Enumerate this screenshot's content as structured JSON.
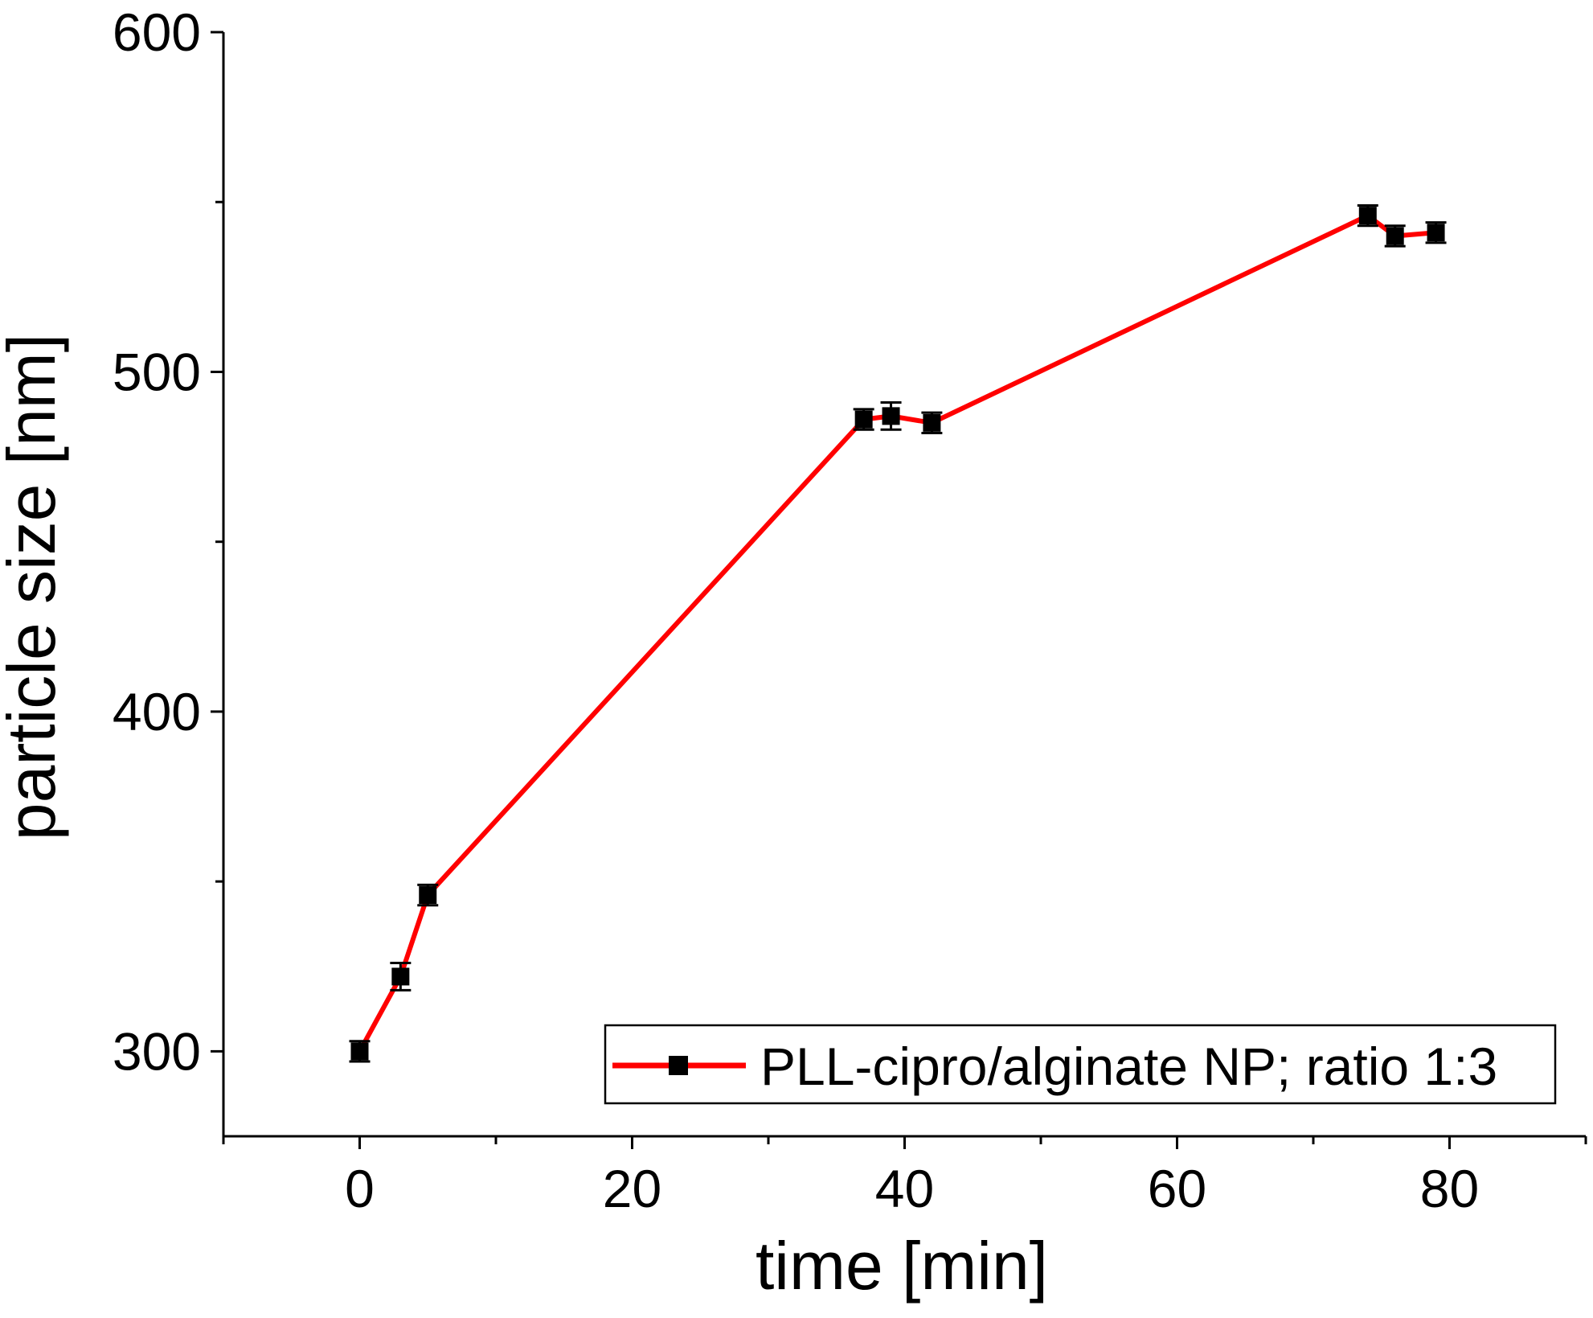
{
  "chart_data": {
    "type": "line",
    "title": "",
    "xlabel": "time [min]",
    "ylabel": "particle size [nm]",
    "xlim": [
      -10,
      90
    ],
    "ylim": [
      275,
      600
    ],
    "x_ticks": [
      0,
      20,
      40,
      60,
      80
    ],
    "x_minor_ticks": [
      -10,
      10,
      30,
      50,
      70,
      90
    ],
    "y_ticks": [
      300,
      400,
      500,
      600
    ],
    "y_minor_ticks": [
      350,
      450,
      550
    ],
    "x_tick_labels": [
      "0",
      "20",
      "40",
      "60",
      "80"
    ],
    "y_tick_labels": [
      "300",
      "400",
      "500",
      "600"
    ],
    "grid": false,
    "legend_position": "bottom-right",
    "series": [
      {
        "name": "PLL-cipro/alginate NP; ratio 1:3",
        "line_color": "#ff0000",
        "marker_color": "#000000",
        "marker": "square",
        "x": [
          0,
          3,
          5,
          37,
          39,
          42,
          74,
          76,
          79
        ],
        "y": [
          300,
          322,
          346,
          486,
          487,
          485,
          546,
          540,
          541
        ],
        "error": [
          3,
          4,
          3,
          3,
          4,
          3,
          3,
          3,
          3
        ]
      }
    ]
  }
}
